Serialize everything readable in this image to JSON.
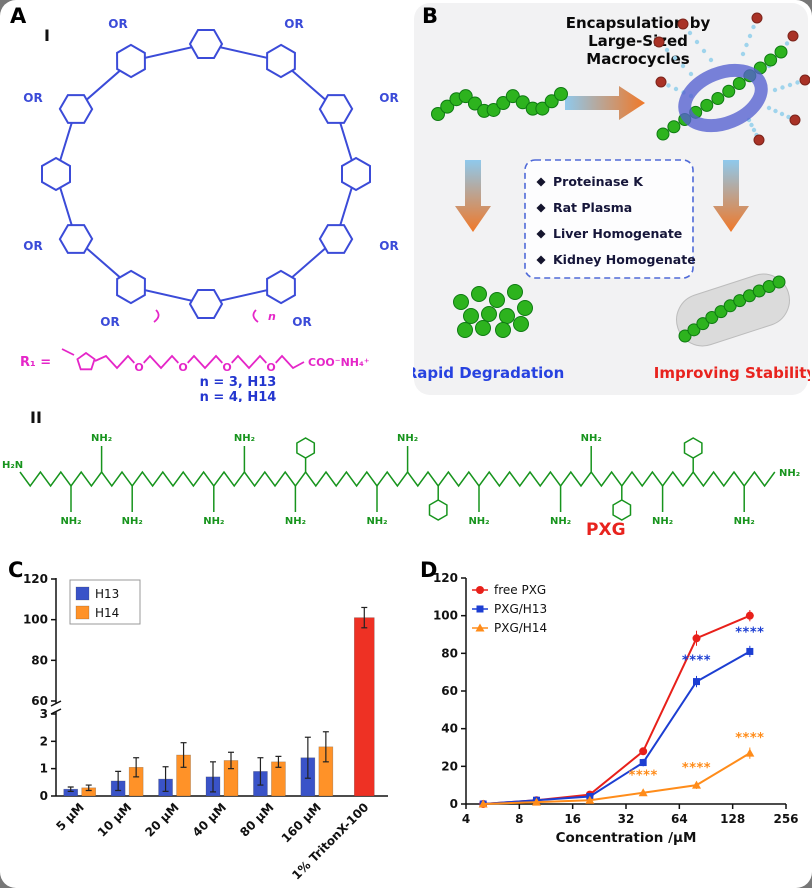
{
  "figure": {
    "panel_labels": {
      "A": "A",
      "B": "B",
      "C": "C",
      "D": "D"
    },
    "roman_I": "I",
    "roman_II": "II"
  },
  "panels": {
    "A": {
      "or_label": "OR",
      "r1_label": "R₁ =",
      "o_label": "O",
      "end_group": "COO⁻NH₄⁺",
      "n_sub": "n",
      "variant_1": "n = 3, H13",
      "variant_2": "n = 4, H14"
    },
    "B": {
      "title_lines": [
        "Encapsulation by",
        "Large-Sized",
        "Macrocycles"
      ],
      "enzymes": [
        "Proteinase K",
        "Rat Plasma",
        "Liver Homogenate",
        "Kidney Homogenate"
      ],
      "rapid_label": "Rapid Degradation",
      "improving_label": "Improving Stability"
    },
    "II": {
      "h2n": "H₂N",
      "nh2": "NH₂",
      "pxg": "PXG"
    }
  },
  "chart_data": [
    {
      "type": "bar",
      "panel": "C",
      "categories": [
        "5 µM",
        "10 µM",
        "20 µM",
        "40 µM",
        "80 µM",
        "160 µM",
        "1% TritonX-100"
      ],
      "series": [
        {
          "name": "H13",
          "color": "#3a53c8",
          "values": [
            0.25,
            0.55,
            0.62,
            0.7,
            0.9,
            1.4
          ],
          "errors": [
            0.08,
            0.35,
            0.45,
            0.55,
            0.5,
            0.75
          ]
        },
        {
          "name": "H14",
          "color": "#ff9228",
          "values": [
            0.3,
            1.05,
            1.5,
            1.3,
            1.25,
            1.8
          ],
          "errors": [
            0.1,
            0.35,
            0.45,
            0.3,
            0.2,
            0.55
          ]
        }
      ],
      "control_bar": {
        "category_index": 6,
        "color": "#ee3124",
        "value": 101,
        "error": 5
      },
      "legend": [
        "H13",
        "H14"
      ],
      "axis_break": true,
      "yticks_lower": [
        0,
        1,
        2,
        3
      ],
      "yticks_upper": [
        60,
        80,
        100,
        120
      ],
      "ylim_lower": [
        0,
        3
      ],
      "ylim_upper": [
        60,
        120
      ],
      "xlabel": "",
      "ylabel": ""
    },
    {
      "type": "line",
      "panel": "D",
      "x": [
        5,
        10,
        20,
        40,
        80,
        160
      ],
      "xscale": "log2",
      "xticks": [
        4,
        8,
        16,
        32,
        64,
        128,
        256
      ],
      "xlabel": "Concentration /µM",
      "ylabel": "",
      "ylim": [
        0,
        120
      ],
      "yticks": [
        0,
        20,
        40,
        60,
        80,
        100,
        120
      ],
      "series": [
        {
          "name": "free PXG",
          "color": "#e8201a",
          "marker": "circle",
          "values": [
            0,
            2,
            5,
            28,
            88,
            100
          ],
          "errors": [
            0.5,
            0.5,
            1,
            2,
            4,
            3
          ]
        },
        {
          "name": "PXG/H13",
          "color": "#1c3ed2",
          "marker": "square",
          "values": [
            0,
            2,
            4,
            22,
            65,
            81
          ],
          "errors": [
            0.5,
            0.5,
            1,
            2,
            3,
            3
          ]
        },
        {
          "name": "PXG/H14",
          "color": "#ff8c1a",
          "marker": "triangle",
          "values": [
            0,
            1,
            2,
            6,
            10,
            27
          ],
          "errors": [
            0.5,
            0.5,
            0.5,
            1,
            2,
            3
          ]
        }
      ],
      "annotations": [
        {
          "text": "****",
          "color": "#1c3ed2",
          "x": 80,
          "y": 74
        },
        {
          "text": "****",
          "color": "#1c3ed2",
          "x": 160,
          "y": 89
        },
        {
          "text": "****",
          "color": "#ff8c1a",
          "x": 40,
          "y": 13
        },
        {
          "text": "****",
          "color": "#ff8c1a",
          "x": 80,
          "y": 17
        },
        {
          "text": "****",
          "color": "#ff8c1a",
          "x": 160,
          "y": 33
        }
      ]
    }
  ]
}
